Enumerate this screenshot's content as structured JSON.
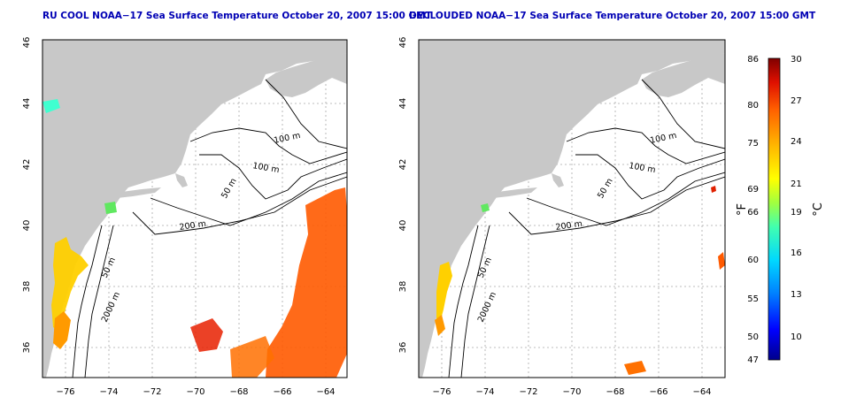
{
  "panels": [
    {
      "title": "RU COOL NOAA−17 Sea Surface Temperature October 20, 2007 15:00 GMT",
      "x_ticks": [
        "−76",
        "−74",
        "−72",
        "−70",
        "−68",
        "−66",
        "−64"
      ],
      "y_ticks": [
        "36",
        "38",
        "40",
        "42",
        "44",
        "46"
      ],
      "contour_labels": [
        "100 m",
        "100 m",
        "50 m",
        "200 m",
        "50 m",
        "2000 m"
      ],
      "cloud_masked": false
    },
    {
      "title": "DECLOUDED NOAA−17 Sea Surface Temperature October 20, 2007 15:00 GMT",
      "x_ticks": [
        "−76",
        "−74",
        "−72",
        "−70",
        "−68",
        "−66",
        "−64"
      ],
      "y_ticks": [
        "36",
        "38",
        "40",
        "42",
        "44",
        "46"
      ],
      "contour_labels": [
        "100 m",
        "100 m",
        "50 m",
        "200 m",
        "50 m",
        "2000 m"
      ],
      "cloud_masked": true
    }
  ],
  "colorbar": {
    "fahrenheit_ticks": [
      "86",
      "80",
      "75",
      "69",
      "66",
      "60",
      "55",
      "50",
      "47"
    ],
    "celsius_ticks": [
      "30",
      "27",
      "24",
      "21",
      "19",
      "16",
      "13",
      "10"
    ],
    "fahrenheit_label": "°F",
    "celsius_label": "°C",
    "range_celsius": [
      8.3,
      30
    ],
    "colors": [
      "#00008b",
      "#0000ff",
      "#0080ff",
      "#00d8ff",
      "#40ffb0",
      "#a0ff40",
      "#ffff00",
      "#ffb000",
      "#ff6000",
      "#e01000",
      "#800000"
    ]
  },
  "colors": {
    "land": "#c8c8c8",
    "ocean": "#ffffff",
    "grid": "#a8a8a8",
    "title": "#0000b4",
    "frame": "#000000"
  }
}
